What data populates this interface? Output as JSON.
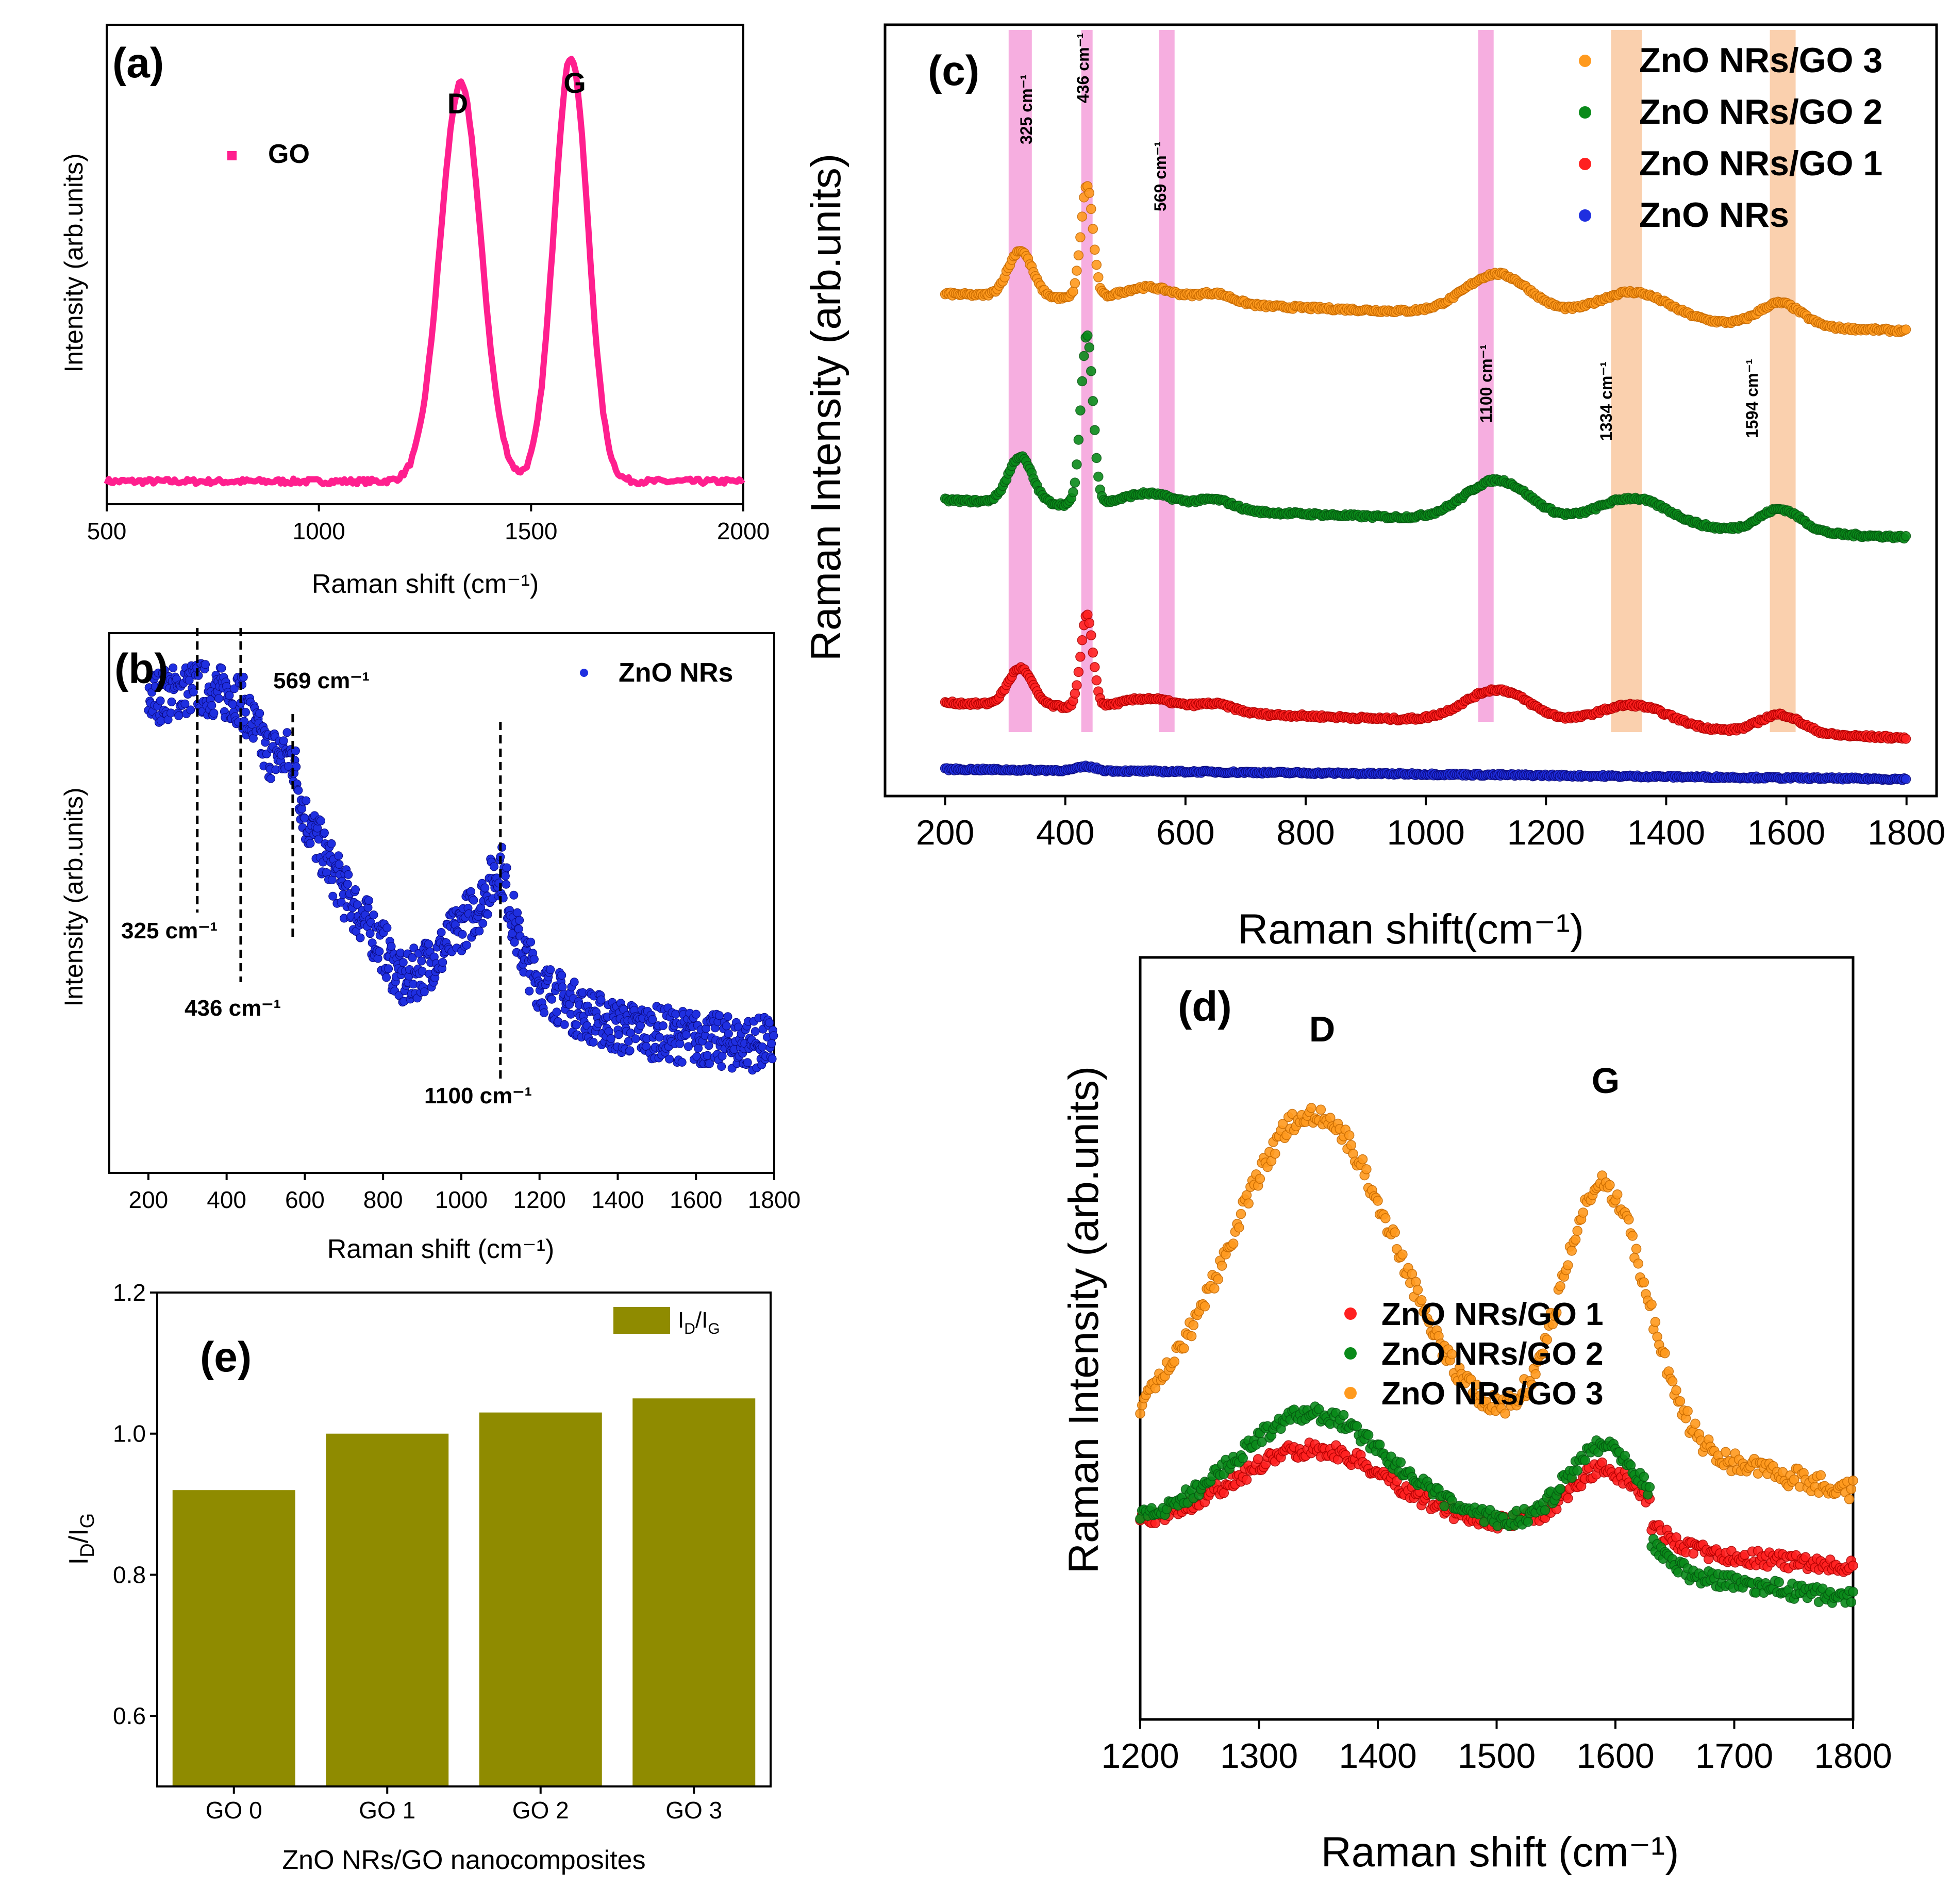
{
  "colors": {
    "go": "#ff1f8e",
    "zno": "#1f2fe0",
    "go1": "#ff2020",
    "go2": "#0a8a1a",
    "go3": "#ff9a1e",
    "bar": "#8f8b00",
    "pinkband": "#f49ad8",
    "peachband": "#f9c49a"
  },
  "panel_a": {
    "label": "(a)",
    "ylabel": "Intensity (arb.units)",
    "xlabel": "Raman shift (cm⁻¹)",
    "legend": "GO",
    "peak_d": "D",
    "peak_g": "G",
    "xticks": [
      "500",
      "1000",
      "1500",
      "2000"
    ]
  },
  "panel_b": {
    "label": "(b)",
    "ylabel": "Intensity (arb.units)",
    "xlabel": "Raman shift (cm⁻¹)",
    "legend": "ZnO NRs",
    "xticks": [
      "200",
      "400",
      "600",
      "800",
      "1000",
      "1200",
      "1400",
      "1600",
      "1800"
    ],
    "annotations": [
      "325 cm⁻¹",
      "436 cm⁻¹",
      "569 cm⁻¹",
      "1100 cm⁻¹"
    ]
  },
  "panel_c": {
    "label": "(c)",
    "ylabel": "Raman Intensity (arb.units)",
    "xlabel": "Raman shift(cm⁻¹)",
    "legend": [
      "ZnO NRs/GO 3",
      "ZnO NRs/GO 2",
      "ZnO NRs/GO 1",
      "ZnO NRs"
    ],
    "xticks": [
      "200",
      "400",
      "600",
      "800",
      "1000",
      "1200",
      "1400",
      "1600",
      "1800"
    ],
    "bands": [
      "325 cm⁻¹",
      "436 cm⁻¹",
      "569 cm⁻¹",
      "1100 cm⁻¹",
      "1334 cm⁻¹",
      "1594 cm⁻¹"
    ]
  },
  "panel_d": {
    "label": "(d)",
    "ylabel": "Raman Intensity (arb.units)",
    "xlabel": "Raman shift (cm⁻¹)",
    "peak_d": "D",
    "peak_g": "G",
    "legend": [
      "ZnO NRs/GO 1",
      "ZnO NRs/GO 2",
      "ZnO NRs/GO 3"
    ],
    "xticks": [
      "1200",
      "1300",
      "1400",
      "1500",
      "1600",
      "1700",
      "1800"
    ]
  },
  "panel_e": {
    "label": "(e)",
    "ylabel": "I",
    "ylabel_sub1": "D",
    "ylabel_sub2": "G",
    "xlabel": "ZnO NRs/GO nanocomposites",
    "legend": "I",
    "legend_sub1": "D",
    "legend_sub2": "G",
    "yticks": [
      "0.6",
      "0.8",
      "1.0",
      "1.2"
    ]
  },
  "chart_data": [
    {
      "id": "a",
      "type": "line",
      "title": "(a)",
      "xlabel": "Raman shift (cm-1)",
      "ylabel": "Intensity (arb.units)",
      "xlim": [
        500,
        2000
      ],
      "ylim": [
        0,
        1.05
      ],
      "series": [
        {
          "name": "GO",
          "peaks": [
            {
              "center": 1334,
              "height": 0.87,
              "width": 48
            },
            {
              "center": 1594,
              "height": 0.93,
              "width": 40
            }
          ],
          "baseline": 0.05
        }
      ]
    },
    {
      "id": "b",
      "type": "scatter",
      "title": "(b)",
      "xlabel": "Raman shift (cm-1)",
      "ylabel": "Intensity (arb.units)",
      "xlim": [
        100,
        1800
      ],
      "ylim": [
        0,
        1
      ],
      "series": [
        {
          "name": "ZnO NRs",
          "x": [
            200,
            325,
            436,
            500,
            569,
            600,
            700,
            800,
            850,
            950,
            1000,
            1050,
            1100,
            1150,
            1200,
            1300,
            1400,
            1500,
            1600,
            1700,
            1800
          ],
          "y": [
            0.88,
            0.9,
            0.88,
            0.78,
            0.77,
            0.66,
            0.52,
            0.42,
            0.35,
            0.41,
            0.46,
            0.5,
            0.57,
            0.42,
            0.35,
            0.3,
            0.27,
            0.26,
            0.25,
            0.24,
            0.24
          ]
        }
      ],
      "annotations": [
        325,
        436,
        569,
        1100
      ]
    },
    {
      "id": "c",
      "type": "scatter",
      "title": "(c)",
      "xlabel": "Raman shift(cm-1)",
      "ylabel": "Raman Intensity (arb.units)",
      "xlim": [
        100,
        1850
      ],
      "ylim": [
        0,
        1
      ],
      "highlight_bands": [
        325,
        436,
        569,
        1100,
        1334,
        1594
      ],
      "series": [
        {
          "name": "ZnO NRs/GO 3",
          "offset": 0.62
        },
        {
          "name": "ZnO NRs/GO 2",
          "offset": 0.335
        },
        {
          "name": "ZnO NRs/GO 1",
          "offset": 0.055
        },
        {
          "name": "ZnO NRs",
          "offset": 0.0
        }
      ]
    },
    {
      "id": "d",
      "type": "scatter",
      "title": "(d)",
      "xlabel": "Raman shift (cm-1)",
      "ylabel": "Raman Intensity (arb.units)",
      "xlim": [
        1200,
        1800
      ],
      "ylim": [
        0,
        1
      ],
      "series": [
        {
          "name": "ZnO NRs/GO 1",
          "D": 1350,
          "G": 1590
        },
        {
          "name": "ZnO NRs/GO 2",
          "D": 1345,
          "G": 1592
        },
        {
          "name": "ZnO NRs/GO 3",
          "D": 1345,
          "G": 1590
        }
      ]
    },
    {
      "id": "e",
      "type": "bar",
      "title": "(e)",
      "xlabel": "ZnO NRs/GO nanocomposites",
      "ylabel": "ID/IG",
      "ylim": [
        0.5,
        1.2
      ],
      "categories": [
        "GO 0",
        "GO 1",
        "GO 2",
        "GO 3"
      ],
      "values": [
        0.92,
        1.0,
        1.03,
        1.05
      ]
    }
  ]
}
